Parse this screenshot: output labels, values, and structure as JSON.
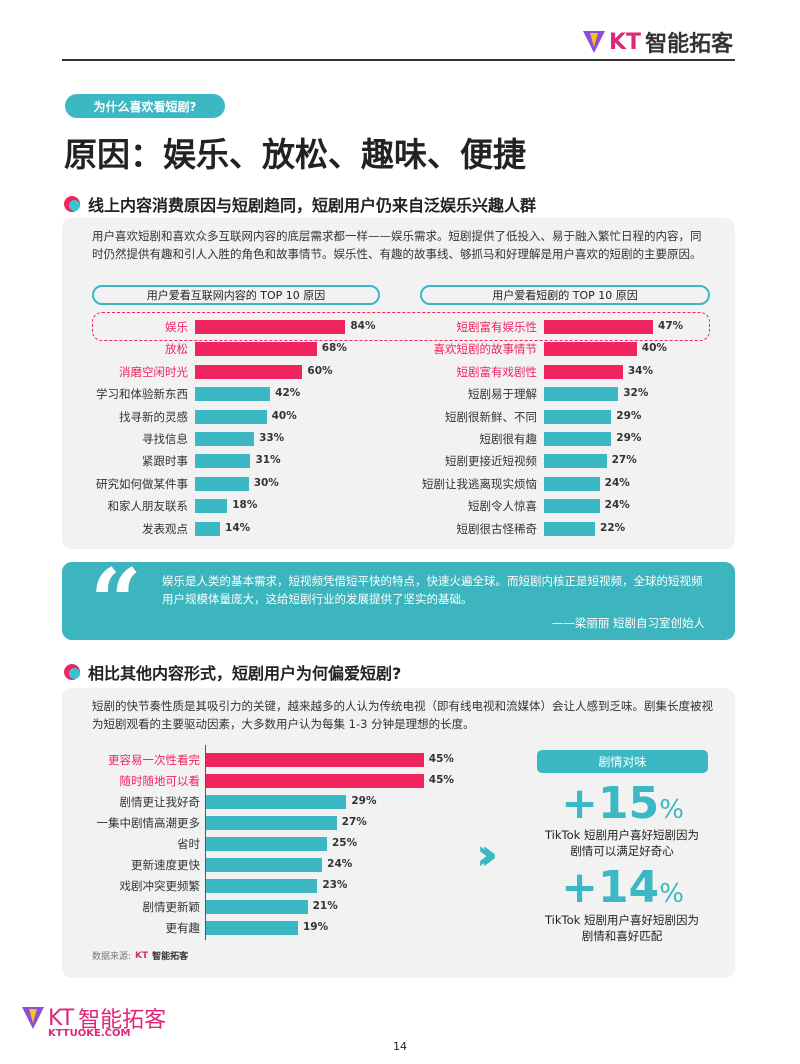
{
  "header": {
    "logo_kt": "KT",
    "logo_text": "智能拓客"
  },
  "tag": "为什么喜欢看短剧?",
  "title": "原因：娱乐、放松、趣味、便捷",
  "section1": {
    "heading": "线上内容消费原因与短剧趋同，短剧用户仍来自泛娱乐兴趣人群",
    "paragraph": "用户喜欢短剧和喜欢众多互联网内容的底层需求都一样——娱乐需求。短剧提供了低投入、易于融入繁忙日程的内容，同时仍然提供有趣和引人入胜的角色和故事情节。娱乐性、有趣的故事线、够抓马和好理解是用户喜欢的短剧的主要原因。"
  },
  "quote": {
    "text": "娱乐是人类的基本需求，短视频凭借短平快的特点，快速火遍全球。而短剧内核正是短视频，全球的短视频用户规模体量庞大，这给短剧行业的发展提供了坚实的基础。",
    "author": "——梁丽丽 短剧自习室创始人"
  },
  "section2": {
    "heading": "相比其他内容形式，短剧用户为何偏爱短剧?",
    "paragraph": "短剧的快节奏性质是其吸引力的关键，越来越多的人认为传统电视（即有线电视和流媒体）会让人感到乏味。剧集长度被视为短剧观看的主要驱动因素，大多数用户认为每集 1-3 分钟是理想的长度。",
    "panel": {
      "label": "剧情对味",
      "stat1": "+15",
      "stat1_cap1": "TikTok 短剧用户喜好短剧因为",
      "stat1_cap2": "剧情可以满足好奇心",
      "stat2": "+14",
      "stat2_cap1": "TikTok 短剧用户喜好短剧因为",
      "stat2_cap2": "剧情和喜好匹配",
      "percent": "%"
    },
    "source_label": "数据来源:"
  },
  "footer": {
    "url": "KTTUOKE.COM",
    "page": "14"
  },
  "colors": {
    "pink": "#f0245f",
    "teal": "#3bb8c3"
  },
  "chart_data": [
    {
      "type": "bar",
      "title": "用户爱看互联网内容的 TOP 10 原因",
      "categories": [
        "娱乐",
        "放松",
        "消磨空闲时光",
        "学习和体验新东西",
        "找寻新的灵感",
        "寻找信息",
        "紧跟时事",
        "研究如何做某件事",
        "和家人朋友联系",
        "发表观点"
      ],
      "values": [
        84,
        68,
        60,
        42,
        40,
        33,
        31,
        30,
        18,
        14
      ],
      "highlight": 3,
      "unit": "%"
    },
    {
      "type": "bar",
      "title": "用户爱看短剧的 TOP 10 原因",
      "categories": [
        "短剧富有娱乐性",
        "喜欢短剧的故事情节",
        "短剧富有戏剧性",
        "短剧易于理解",
        "短剧很新鲜、不同",
        "短剧很有趣",
        "短剧更接近短视频",
        "短剧让我逃离现实烦恼",
        "短剧令人惊喜",
        "短剧很古怪稀奇"
      ],
      "values": [
        47,
        40,
        34,
        32,
        29,
        29,
        27,
        24,
        24,
        22
      ],
      "highlight": 3,
      "unit": "%"
    },
    {
      "type": "bar",
      "title": "",
      "categories": [
        "更容易一次性看完",
        "随时随地可以看",
        "剧情更让我好奇",
        "一集中剧情高潮更多",
        "省时",
        "更新速度更快",
        "戏剧冲突更频繁",
        "剧情更新颖",
        "更有趣"
      ],
      "values": [
        45,
        45,
        29,
        27,
        25,
        24,
        23,
        21,
        19
      ],
      "highlight": 2,
      "unit": "%"
    }
  ]
}
